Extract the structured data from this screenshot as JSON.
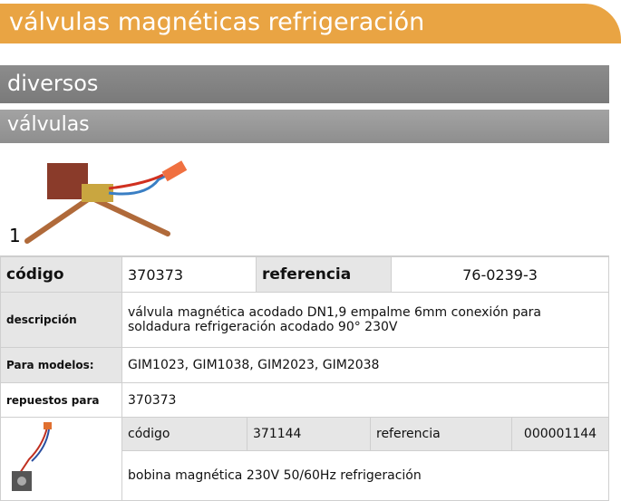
{
  "header": {
    "title": "válvulas magnéticas refrigeración"
  },
  "section": "diversos",
  "subsection": "válvulas",
  "item": {
    "number": "1",
    "code_label": "código",
    "code": "370373",
    "ref_label": "referencia",
    "ref": "76-0239-3",
    "desc_label": "descripción",
    "desc": "válvula magnética  acodado DN1,9 empalme 6mm conexión para soldadura refrigeración acodado 90° 230V",
    "models_label": "Para modelos:",
    "models": "GIM1023, GIM1038, GIM2023, GIM2038",
    "spares_label": "repuestos para",
    "spares": "370373"
  },
  "spare": {
    "code_label": "código",
    "code": "371144",
    "ref_label": "referencia",
    "ref": "000001144",
    "desc": "bobina magnética  230V 50/60Hz refrigeración"
  }
}
